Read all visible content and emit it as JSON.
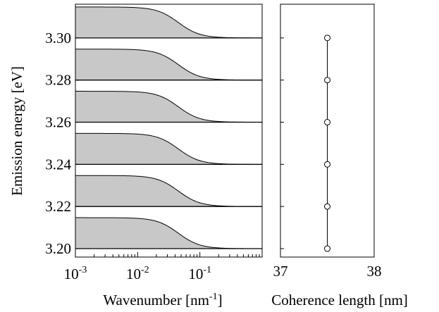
{
  "chart_data": [
    {
      "type": "area",
      "xlabel": "Wavenumber [nm",
      "xlabel_sup": "-1",
      "xlabel_end": "]",
      "ylabel": "Emission energy [eV]",
      "x_scale": "log",
      "xlim": [
        0.001,
        1
      ],
      "ylim": [
        3.196,
        3.316
      ],
      "x_ticks": [
        {
          "value": 0.001,
          "base": "10",
          "exp": "-3"
        },
        {
          "value": 0.01,
          "base": "10",
          "exp": "-2"
        },
        {
          "value": 0.1,
          "base": "10",
          "exp": "-1"
        }
      ],
      "y_ticks": [
        {
          "value": 3.2,
          "label": "3.20"
        },
        {
          "value": 3.22,
          "label": "3.22"
        },
        {
          "value": 3.24,
          "label": "3.24"
        },
        {
          "value": 3.26,
          "label": "3.26"
        },
        {
          "value": 3.28,
          "label": "3.28"
        },
        {
          "value": 3.3,
          "label": "3.30"
        }
      ],
      "fill_color": "#c8c8c8",
      "series": [
        {
          "baseline": 3.2,
          "plateau": 0.0147,
          "half_point": 0.045
        },
        {
          "baseline": 3.22,
          "plateau": 0.0147,
          "half_point": 0.045
        },
        {
          "baseline": 3.24,
          "plateau": 0.0147,
          "half_point": 0.045
        },
        {
          "baseline": 3.26,
          "plateau": 0.0147,
          "half_point": 0.045
        },
        {
          "baseline": 3.28,
          "plateau": 0.0147,
          "half_point": 0.045
        },
        {
          "baseline": 3.3,
          "plateau": 0.0147,
          "half_point": 0.045
        }
      ],
      "grid": false,
      "legend": "none"
    },
    {
      "type": "line",
      "xlabel": "Coherence length [nm]",
      "xlim": [
        37,
        38
      ],
      "ylim": [
        3.196,
        3.316
      ],
      "x_ticks": [
        {
          "value": 37,
          "label": "37"
        },
        {
          "value": 38,
          "label": "38"
        }
      ],
      "series": [
        {
          "points": [
            {
              "x": 37.5,
              "y": 3.2
            },
            {
              "x": 37.5,
              "y": 3.22
            },
            {
              "x": 37.5,
              "y": 3.24
            },
            {
              "x": 37.5,
              "y": 3.26
            },
            {
              "x": 37.5,
              "y": 3.28
            },
            {
              "x": 37.5,
              "y": 3.3
            }
          ],
          "marker": "open-circle"
        }
      ],
      "grid": false,
      "legend": "none"
    }
  ]
}
